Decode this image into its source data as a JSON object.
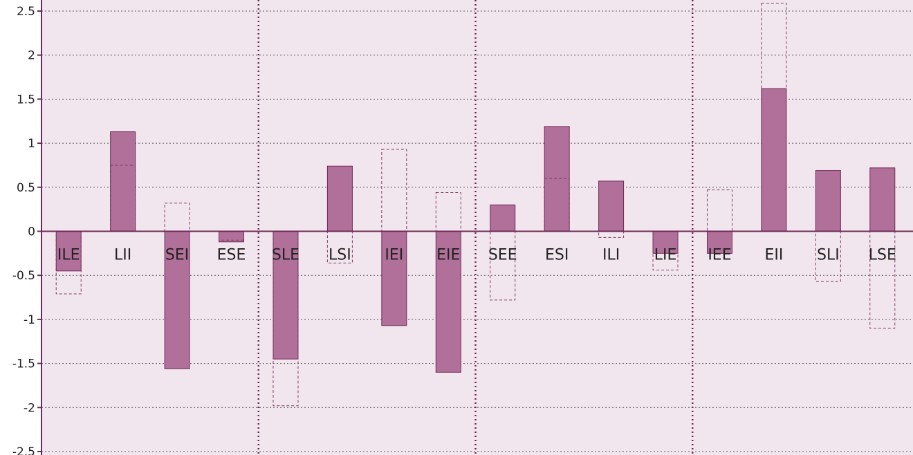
{
  "chart_data": {
    "type": "bar",
    "categories": [
      "ILE",
      "LII",
      "SEI",
      "ESE",
      "SLE",
      "LSI",
      "IEI",
      "EIE",
      "SEE",
      "ESI",
      "ILI",
      "LIE",
      "IEE",
      "EII",
      "SLI",
      "LSE"
    ],
    "series": [
      {
        "values": [
          -0.45,
          1.13,
          -1.56,
          -0.12,
          -1.45,
          0.74,
          -1.07,
          -1.6,
          0.3,
          1.19,
          0.57,
          -0.25,
          -0.25,
          1.62,
          0.69,
          0.72
        ]
      },
      {
        "values": [
          -0.71,
          0.75,
          0.32,
          -0.1,
          -1.98,
          -0.36,
          0.93,
          0.44,
          -0.78,
          0.6,
          -0.07,
          -0.44,
          0.47,
          2.59,
          -0.57,
          -1.1
        ]
      }
    ],
    "yticks": [
      "2.5",
      "2",
      "1.5",
      "1",
      "0.5",
      "0",
      "-0.5",
      "-1",
      "-1.5",
      "-2",
      "-2.5"
    ],
    "ylim": [
      -2.55,
      2.6
    ],
    "grid": true,
    "group_separators_after": [
      4,
      8,
      12
    ],
    "colors": {
      "plot_bg": "#f2e6ee",
      "bar_fill": "#b07099",
      "bar_stroke": "#6e2a56",
      "axis": "#6e2a56",
      "grid": "#555555",
      "outline": "#7a3a62"
    }
  }
}
